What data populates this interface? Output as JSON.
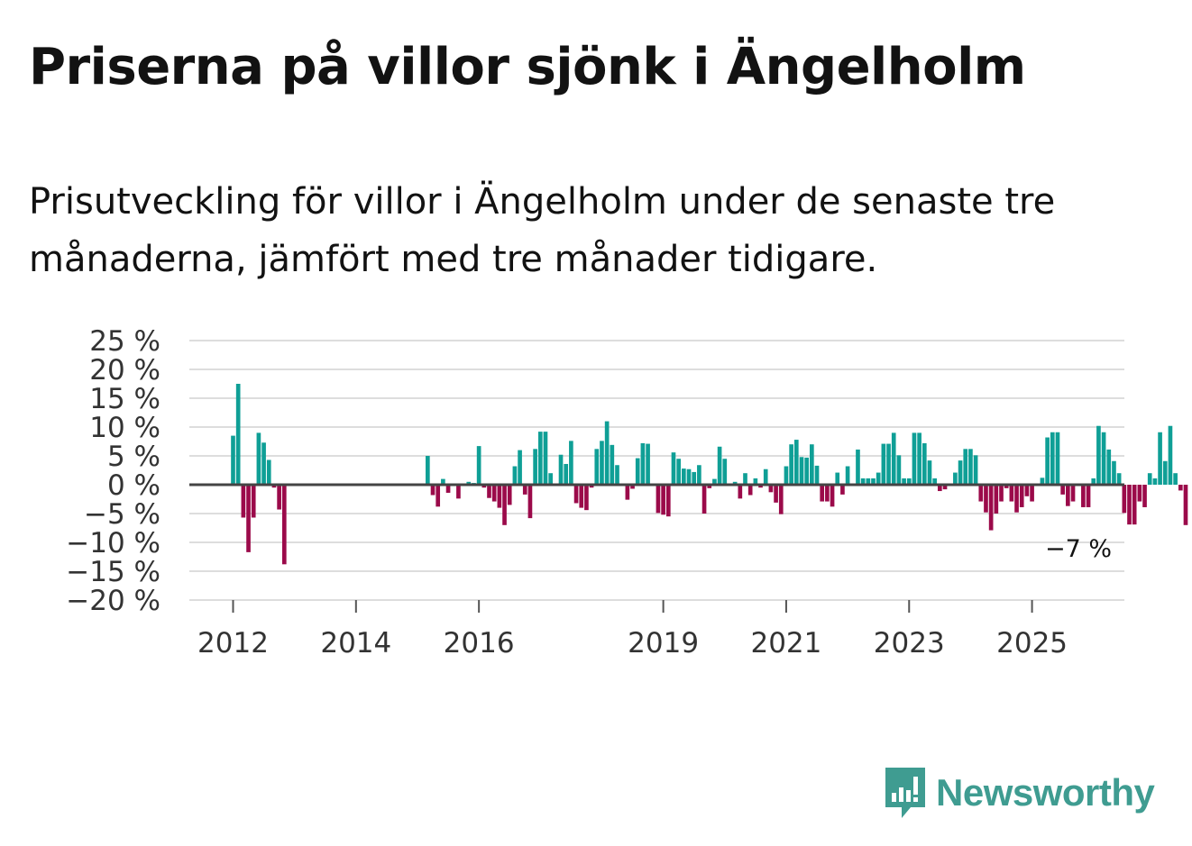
{
  "title": "Priserna på villor sjönk i Ängelholm",
  "subtitle": "Prisutveckling för villor i Ängelholm under de senaste tre månaderna, jämfört med tre månader tidigare.",
  "brand": {
    "name": "Newsworthy",
    "color": "#3f9c91",
    "icon": "newsworthy-logo-icon"
  },
  "colors": {
    "positive": "#0f9f96",
    "negative": "#9b0a4a",
    "zero_line": "#444444",
    "grid": "#dddddd"
  },
  "chart_data": {
    "type": "bar",
    "title": "Priserna på villor sjönk i Ängelholm",
    "xlabel": "",
    "ylabel": "",
    "ylim": [
      -20,
      25
    ],
    "y_ticks": [
      25,
      20,
      15,
      10,
      5,
      0,
      -5,
      -10,
      -15,
      -20
    ],
    "y_tick_labels": [
      "25 %",
      "20 %",
      "15 %",
      "10 %",
      "5 %",
      "0 %",
      "−5 %",
      "−10 %",
      "−15 %",
      "−20 %"
    ],
    "x_ticks": [
      {
        "label": "2012",
        "index": 0
      },
      {
        "label": "2014",
        "index": 24
      },
      {
        "label": "2016",
        "index": 48
      },
      {
        "label": "2019",
        "index": 84
      },
      {
        "label": "2021",
        "index": 108
      },
      {
        "label": "2023",
        "index": 132
      },
      {
        "label": "2025",
        "index": 156
      }
    ],
    "start": "2012-01",
    "unit": "%",
    "end_label": "−7 %",
    "values": [
      8.5,
      17.5,
      -5.7,
      -11.7,
      -5.7,
      9,
      7.3,
      4.3,
      -0.5,
      -4.3,
      -13.8,
      0,
      0,
      0,
      0,
      0,
      0,
      0,
      0,
      0,
      0,
      0,
      0,
      0,
      0,
      0,
      0,
      0,
      0,
      0,
      0,
      0,
      0,
      0,
      0,
      0,
      0,
      0,
      5,
      -1.8,
      -3.8,
      1,
      -1.4,
      0,
      -2.4,
      0,
      0.5,
      0.3,
      6.7,
      -0.5,
      -2.3,
      -2.9,
      -4,
      -7,
      -3.5,
      3.2,
      6,
      -1.7,
      -5.8,
      6.2,
      9.2,
      9.2,
      2,
      0,
      5.2,
      3.6,
      7.6,
      -3.2,
      -4,
      -4.4,
      -0.5,
      6.2,
      7.6,
      11,
      6.9,
      3.4,
      0,
      -2.6,
      -0.7,
      4.6,
      7.2,
      7.1,
      0,
      -4.9,
      -5.2,
      -5.5,
      5.6,
      4.5,
      2.8,
      2.7,
      2.2,
      3.4,
      -5,
      -0.6,
      1,
      6.6,
      4.5,
      0,
      0.5,
      -2.4,
      2,
      -1.8,
      1.1,
      -0.5,
      2.7,
      -1.3,
      -3.1,
      -5.1,
      3.2,
      7,
      7.8,
      4.8,
      4.7,
      7,
      3.3,
      -2.9,
      -2.9,
      -3.8,
      2.1,
      -1.7,
      3.2,
      0,
      6.1,
      1.1,
      1.1,
      1.1,
      2.1,
      7.1,
      7.1,
      9,
      5.1,
      1.1,
      1.1,
      9,
      9,
      7.2,
      4.2,
      1.1,
      -1.1,
      -0.8,
      0,
      2.1,
      4.2,
      6.2,
      6.2,
      5.1,
      -2.9,
      -4.8,
      -7.9,
      -5,
      -2.9,
      -0.6,
      -2.9,
      -4.8,
      -3.9,
      -2,
      -2.9,
      0,
      1.2,
      8.2,
      9.1,
      9.1,
      -1.7,
      -3.7,
      -2.9,
      0,
      -3.9,
      -3.9,
      1.1,
      10.2,
      9.1,
      6.1,
      4.1,
      2,
      -4.9,
      -6.9,
      -6.9,
      -2.9,
      -3.9,
      2,
      1.1,
      9.1,
      4.1,
      10.2,
      2,
      -1,
      -7
    ]
  }
}
